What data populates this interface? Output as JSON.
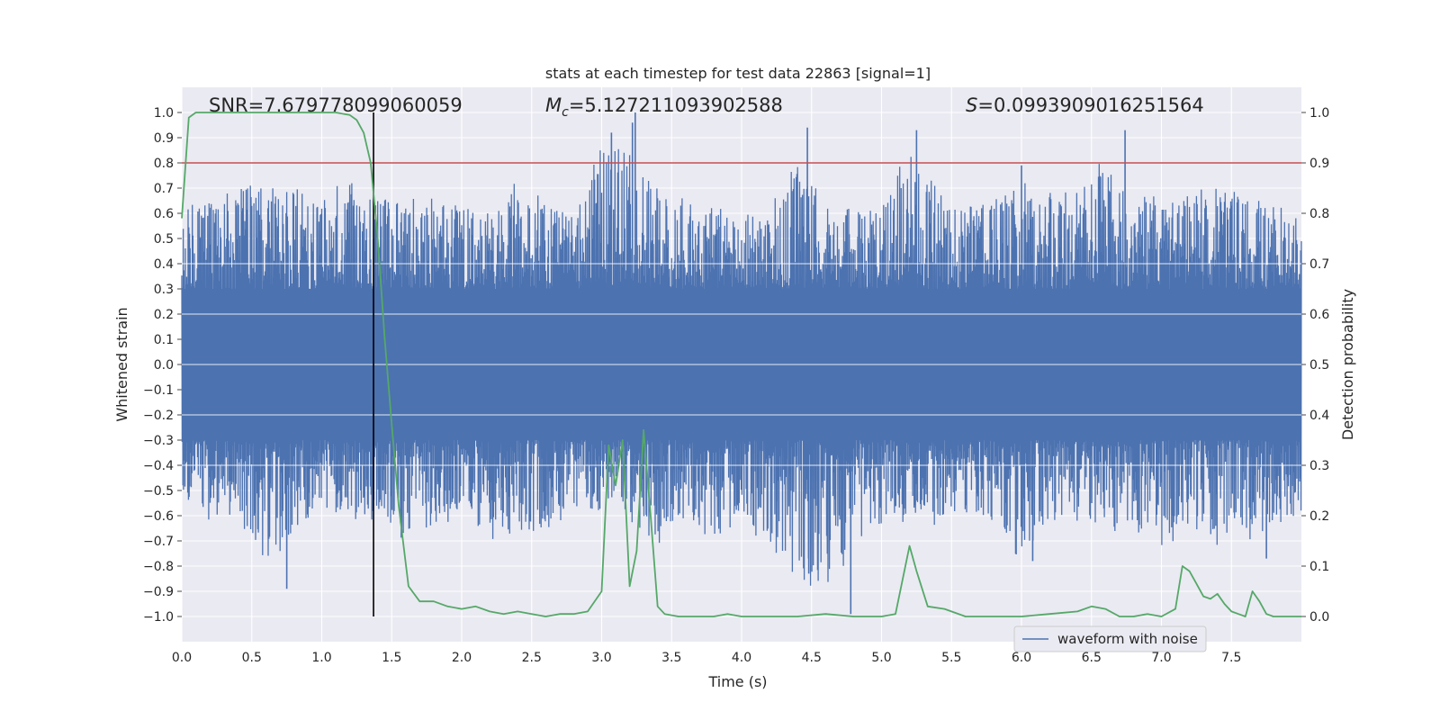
{
  "chart_data": {
    "type": "line",
    "title": "stats at each timestep for test data 22863 [signal=1]",
    "xlabel": "Time (s)",
    "ylabel": "Whitened strain",
    "y2label": "Detection probability",
    "xlim": [
      0.0,
      8.0
    ],
    "ylim": [
      -1.1,
      1.1
    ],
    "y2lim": [
      -0.05,
      1.05
    ],
    "xticks": [
      "0.0",
      "0.5",
      "1.0",
      "1.5",
      "2.0",
      "2.5",
      "3.0",
      "3.5",
      "4.0",
      "4.5",
      "5.0",
      "5.5",
      "6.0",
      "6.5",
      "7.0",
      "7.5"
    ],
    "yticks": [
      "1.0",
      "0.9",
      "0.8",
      "0.7",
      "0.6",
      "0.5",
      "0.4",
      "0.3",
      "0.2",
      "0.1",
      "0.0",
      "-0.1",
      "-0.2",
      "-0.3",
      "-0.4",
      "-0.5",
      "-0.6",
      "-0.7",
      "-0.8",
      "-0.9",
      "-1.0"
    ],
    "y2ticks": [
      "1.0",
      "0.9",
      "0.8",
      "0.7",
      "0.6",
      "0.5",
      "0.4",
      "0.3",
      "0.2",
      "0.1",
      "0.0"
    ],
    "annotations": {
      "snr": "SNR=7.679778099060059",
      "mc_symbol": "M",
      "mc_sub": "c",
      "mc_value": "=5.127211093902588",
      "s_symbol": "S",
      "s_value": "=0.0993909016251564"
    },
    "threshold": {
      "y": 0.8,
      "color": "#c44e52"
    },
    "marker_time": 1.37,
    "legend": {
      "label": "waveform with noise",
      "position": "bottom-right"
    },
    "series": [
      {
        "name": "waveform with noise",
        "axis": "left",
        "color": "#4c72b0",
        "envelope": {
          "x": [
            0.0,
            0.2,
            0.4,
            0.6,
            0.8,
            1.0,
            1.2,
            1.4,
            1.6,
            1.8,
            2.0,
            2.2,
            2.4,
            2.6,
            2.8,
            3.0,
            3.2,
            3.4,
            3.6,
            3.8,
            4.0,
            4.2,
            4.4,
            4.6,
            4.8,
            5.0,
            5.2,
            5.4,
            5.6,
            5.8,
            6.0,
            6.2,
            6.4,
            6.6,
            6.8,
            7.0,
            7.2,
            7.4,
            7.6,
            7.8,
            8.0
          ],
          "upper": [
            0.62,
            0.68,
            0.72,
            0.7,
            0.74,
            0.68,
            0.76,
            0.72,
            0.66,
            0.66,
            0.68,
            0.64,
            0.74,
            0.66,
            0.64,
            0.9,
            0.92,
            0.72,
            0.66,
            0.62,
            0.64,
            0.62,
            0.84,
            0.66,
            0.62,
            0.66,
            0.86,
            0.7,
            0.64,
            0.68,
            0.76,
            0.72,
            0.68,
            0.84,
            0.7,
            0.66,
            0.72,
            0.7,
            0.72,
            0.66,
            0.64
          ],
          "lower": [
            -0.54,
            -0.62,
            -0.6,
            -0.84,
            -0.66,
            -0.56,
            -0.66,
            -0.64,
            -0.7,
            -0.66,
            -0.6,
            -0.74,
            -0.72,
            -0.66,
            -0.6,
            -0.62,
            -0.62,
            -0.72,
            -0.62,
            -0.7,
            -0.62,
            -0.76,
            -0.84,
            -0.96,
            -0.72,
            -0.66,
            -0.62,
            -0.64,
            -0.6,
            -0.66,
            -0.78,
            -0.66,
            -0.62,
            -0.66,
            -0.68,
            -0.72,
            -0.68,
            -0.72,
            -0.7,
            -0.66,
            -0.62
          ]
        },
        "peaks": [
          {
            "t": 3.07,
            "v": 0.92
          },
          {
            "t": 3.22,
            "v": 0.96
          },
          {
            "t": 3.24,
            "v": 1.0
          },
          {
            "t": 4.47,
            "v": 0.94
          },
          {
            "t": 5.25,
            "v": 0.93
          },
          {
            "t": 6.74,
            "v": 0.93
          },
          {
            "t": 6.0,
            "v": 0.79
          },
          {
            "t": 0.75,
            "v": -0.89
          },
          {
            "t": 4.78,
            "v": -0.99
          },
          {
            "t": 4.48,
            "v": -0.83
          },
          {
            "t": 6.08,
            "v": -0.78
          },
          {
            "t": 7.75,
            "v": -0.77
          }
        ]
      },
      {
        "name": "detection probability",
        "axis": "right",
        "color": "#55a868",
        "x": [
          0.0,
          0.05,
          0.1,
          0.2,
          0.4,
          0.6,
          0.8,
          1.0,
          1.1,
          1.2,
          1.25,
          1.3,
          1.35,
          1.4,
          1.45,
          1.5,
          1.55,
          1.62,
          1.7,
          1.8,
          1.9,
          2.0,
          2.1,
          2.2,
          2.3,
          2.4,
          2.5,
          2.6,
          2.7,
          2.8,
          2.9,
          3.0,
          3.05,
          3.1,
          3.15,
          3.2,
          3.25,
          3.3,
          3.35,
          3.4,
          3.45,
          3.55,
          3.7,
          3.8,
          3.9,
          4.0,
          4.2,
          4.4,
          4.6,
          4.8,
          5.0,
          5.1,
          5.2,
          5.25,
          5.33,
          5.45,
          5.6,
          5.8,
          6.0,
          6.2,
          6.4,
          6.5,
          6.6,
          6.7,
          6.8,
          6.9,
          7.0,
          7.1,
          7.15,
          7.2,
          7.25,
          7.3,
          7.35,
          7.4,
          7.45,
          7.5,
          7.55,
          7.6,
          7.65,
          7.7,
          7.75,
          7.8,
          7.9,
          8.0
        ],
        "y": [
          0.79,
          0.99,
          1.0,
          1.0,
          1.0,
          1.0,
          1.0,
          1.0,
          1.0,
          0.995,
          0.985,
          0.96,
          0.9,
          0.75,
          0.55,
          0.38,
          0.22,
          0.06,
          0.03,
          0.03,
          0.02,
          0.015,
          0.02,
          0.01,
          0.005,
          0.01,
          0.005,
          0.0,
          0.005,
          0.005,
          0.01,
          0.05,
          0.34,
          0.26,
          0.35,
          0.06,
          0.13,
          0.37,
          0.2,
          0.02,
          0.005,
          0.0,
          0.0,
          0.0,
          0.005,
          0.0,
          0.0,
          0.0,
          0.005,
          0.0,
          0.0,
          0.005,
          0.14,
          0.09,
          0.02,
          0.015,
          0.0,
          0.0,
          0.0,
          0.005,
          0.01,
          0.02,
          0.015,
          0.0,
          0.0,
          0.005,
          0.0,
          0.015,
          0.1,
          0.09,
          0.065,
          0.04,
          0.035,
          0.045,
          0.025,
          0.01,
          0.005,
          0.0,
          0.05,
          0.03,
          0.005,
          0.0,
          0.0,
          0.0
        ]
      }
    ]
  }
}
